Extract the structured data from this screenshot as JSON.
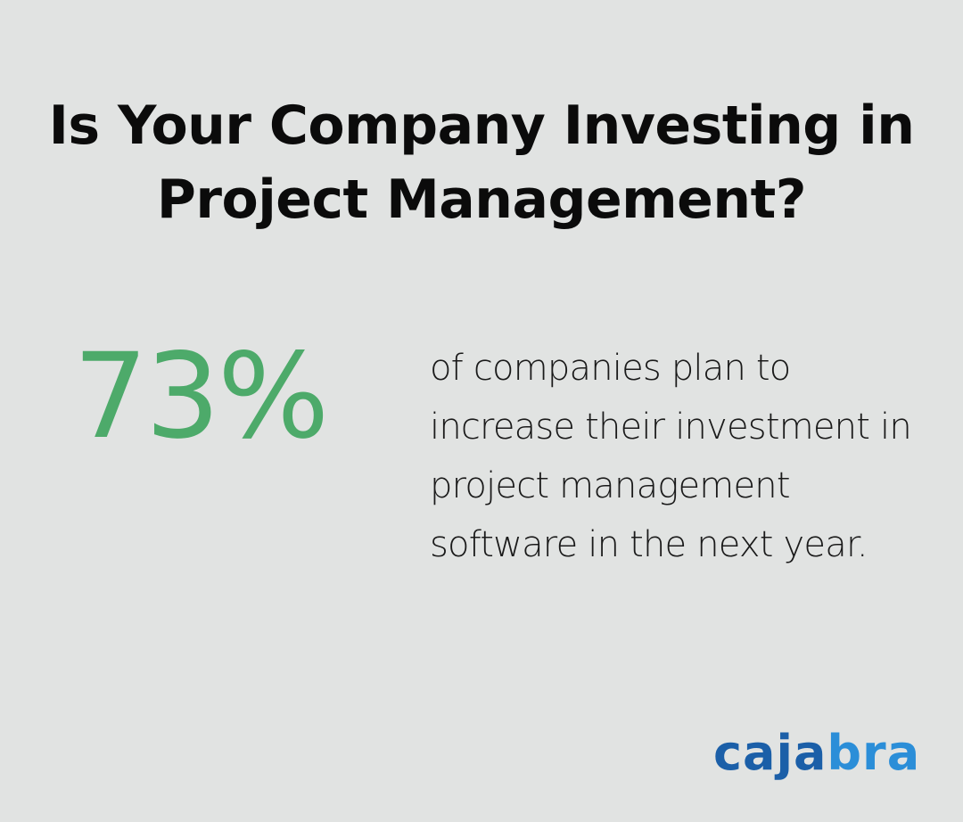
{
  "title": "Is Your Company Investing in Project Management?",
  "stat": {
    "value": "73%",
    "description": "of companies plan to increase their investment in project management software in the next year."
  },
  "logo": {
    "text": "cajabra",
    "part1": "caja",
    "part2": "bra",
    "colors": {
      "primary": "#1b5fa8",
      "secondary": "#2b8ed8"
    }
  },
  "colors": {
    "background": "#e1e3e2",
    "accent": "#4daa6a",
    "text": "#0b0b0b"
  }
}
